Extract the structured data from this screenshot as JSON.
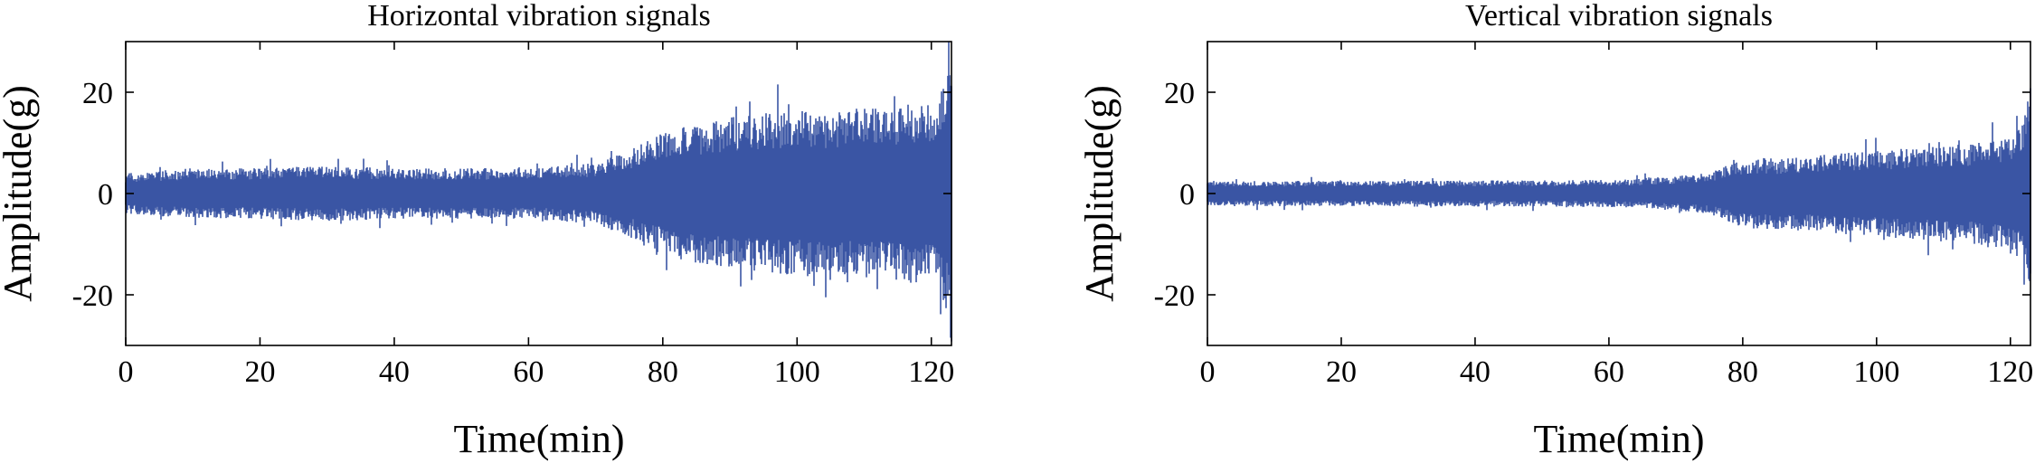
{
  "chart_data": [
    {
      "type": "line",
      "title": "Horizontal vibration signals",
      "xlabel": "Time(min)",
      "ylabel": "Amplitude(g)",
      "xlim": [
        0,
        123
      ],
      "ylim": [
        -30,
        30
      ],
      "xticks": [
        0,
        20,
        40,
        60,
        80,
        100,
        120
      ],
      "yticks": [
        -20,
        0,
        20
      ],
      "grid": false,
      "series": [
        {
          "color": "#3A55A4",
          "envelope_time": [
            0,
            10,
            20,
            30,
            40,
            50,
            60,
            65,
            70,
            74,
            78,
            82,
            86,
            90,
            95,
            100,
            105,
            110,
            115,
            120,
            122,
            123
          ],
          "envelope_amplitude": [
            4,
            5,
            5,
            5.5,
            5,
            5,
            5,
            5.5,
            6,
            8,
            11,
            13,
            14,
            15,
            16,
            16.5,
            16,
            17,
            17.5,
            18,
            22,
            30
          ]
        }
      ]
    },
    {
      "type": "line",
      "title": "Vertical vibration signals",
      "xlabel": "Time(min)",
      "ylabel": "Amplitude(g)",
      "xlim": [
        0,
        123
      ],
      "ylim": [
        -30,
        30
      ],
      "xticks": [
        0,
        20,
        40,
        60,
        80,
        100,
        120
      ],
      "yticks": [
        -20,
        0,
        20
      ],
      "grid": false,
      "series": [
        {
          "color": "#3A55A4",
          "envelope_time": [
            0,
            10,
            20,
            30,
            40,
            50,
            60,
            65,
            70,
            75,
            78,
            80,
            85,
            90,
            95,
            100,
            105,
            110,
            115,
            120,
            122,
            123
          ],
          "envelope_amplitude": [
            2.5,
            2.5,
            2.5,
            2.5,
            2.6,
            2.6,
            2.7,
            3,
            3.5,
            4,
            6,
            7,
            7,
            7.5,
            8,
            8.5,
            9,
            9.5,
            10,
            11,
            14,
            22
          ]
        }
      ]
    }
  ]
}
